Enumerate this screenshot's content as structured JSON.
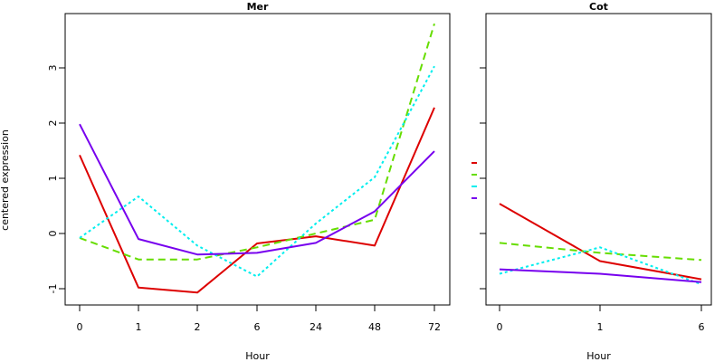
{
  "chart_data": [
    {
      "type": "line",
      "title": "Mer",
      "xlabel": "Hour",
      "ylabel": "centered expression",
      "categories": [
        "0",
        "1",
        "2",
        "6",
        "24",
        "48",
        "72"
      ],
      "yticks": [
        "-1",
        "0",
        "1",
        "2",
        "3"
      ],
      "ylim": [
        -1.3,
        3.9
      ],
      "series": [
        {
          "color": "#dd0000",
          "dash": "solid",
          "values": [
            1.42,
            -0.98,
            -1.07,
            -0.18,
            -0.05,
            -0.22,
            2.28
          ]
        },
        {
          "color": "#66dd00",
          "dash": "dashed",
          "values": [
            -0.08,
            -0.47,
            -0.47,
            -0.25,
            0.0,
            0.25,
            3.8
          ]
        },
        {
          "color": "#00eeee",
          "dash": "dotted",
          "values": [
            -0.08,
            0.67,
            -0.22,
            -0.78,
            0.18,
            1.02,
            3.03
          ]
        },
        {
          "color": "#7700ee",
          "dash": "solid",
          "values": [
            1.98,
            -0.1,
            -0.38,
            -0.35,
            -0.17,
            0.4,
            1.49
          ]
        }
      ]
    },
    {
      "type": "line",
      "title": "Cot",
      "xlabel": "Hour",
      "ylabel": "",
      "categories": [
        "0",
        "1",
        "6"
      ],
      "ylim": [
        -1.3,
        3.9
      ],
      "series": [
        {
          "color": "#dd0000",
          "dash": "solid",
          "values": [
            0.54,
            -0.5,
            -0.83
          ]
        },
        {
          "color": "#66dd00",
          "dash": "dashed",
          "values": [
            -0.17,
            -0.35,
            -0.48
          ]
        },
        {
          "color": "#00eeee",
          "dash": "dotted",
          "values": [
            -0.73,
            -0.25,
            -0.92
          ]
        },
        {
          "color": "#7700ee",
          "dash": "solid",
          "values": [
            -0.65,
            -0.73,
            -0.88
          ]
        }
      ]
    }
  ],
  "legend_colors": [
    "#dd0000",
    "#66dd00",
    "#00eeee",
    "#7700ee"
  ]
}
